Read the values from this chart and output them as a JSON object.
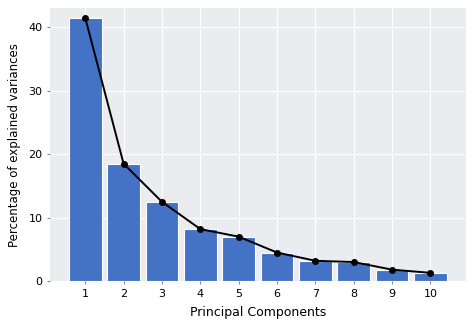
{
  "categories": [
    1,
    2,
    3,
    4,
    5,
    6,
    7,
    8,
    9,
    10
  ],
  "values": [
    41.5,
    18.5,
    12.5,
    8.2,
    7.0,
    4.5,
    3.2,
    3.0,
    1.8,
    1.3
  ],
  "bar_color": "#4472C4",
  "bar_edgecolor": "#FFFFFF",
  "line_color": "#000000",
  "marker_color": "#000000",
  "background_color": "#FFFFFF",
  "panel_background": "#EBECF0",
  "grid_color": "#FFFFFF",
  "xlabel": "Principal Components",
  "ylabel": "Percentage of explained variances",
  "ylim": [
    0,
    43
  ],
  "yticks": [
    0,
    10,
    20,
    30,
    40
  ],
  "title": "",
  "bar_width": 0.85,
  "marker_size": 4,
  "line_width": 1.4,
  "xlabel_fontsize": 9,
  "ylabel_fontsize": 8.5,
  "tick_fontsize": 8
}
